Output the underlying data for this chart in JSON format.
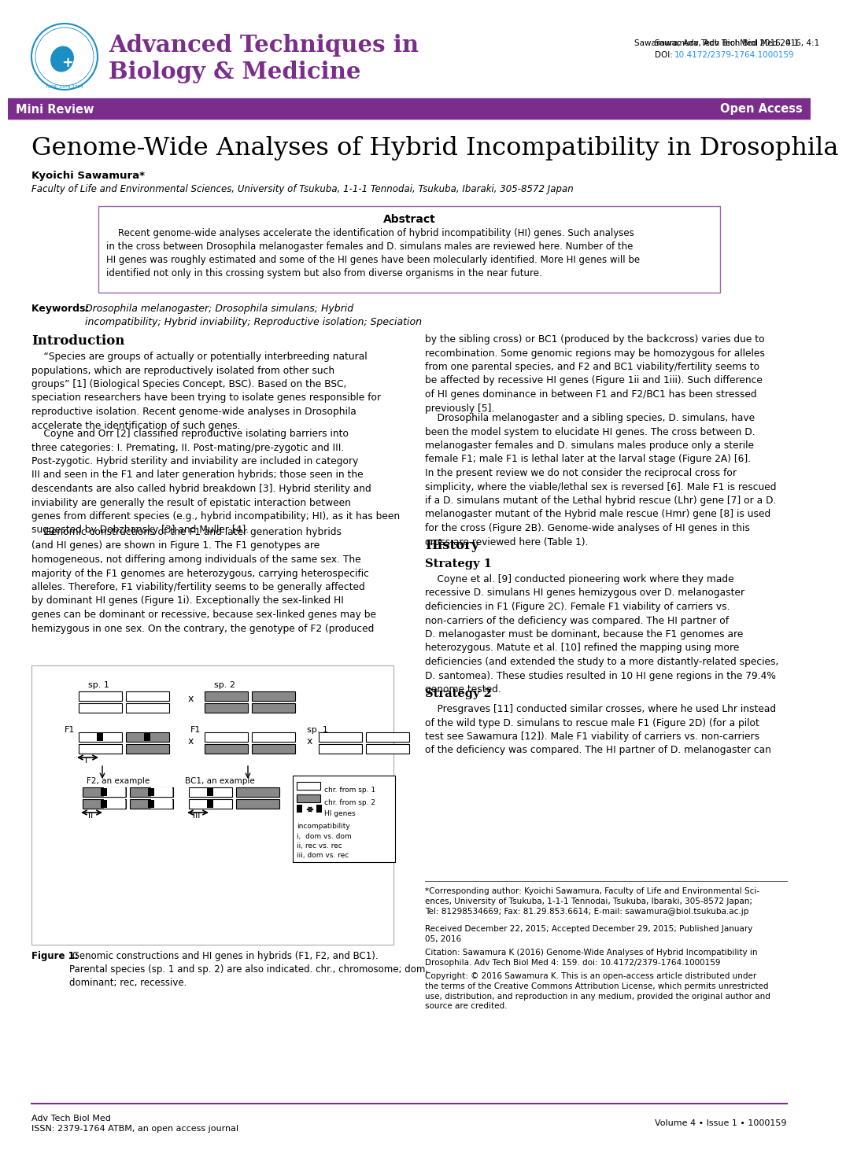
{
  "journal_color": "#7B2D8B",
  "banner_color": "#7B2D8B",
  "doi_color": "#1E90FF",
  "journal_name_line1": "Advanced Techniques in",
  "journal_name_line2": "Biology & Medicine",
  "mini_review_text": "Mini Review",
  "open_access_text": "Open Access",
  "citation_top": "Sawamura, Adv Tech Biol Med 2016, 4:1",
  "doi_text": "DOI: ",
  "doi_link": "10.4172/2379-1764.1000159",
  "article_title": "Genome-Wide Analyses of Hybrid Incompatibility in Drosophila",
  "author": "Kyoichi Sawamura*",
  "affiliation": "Faculty of Life and Environmental Sciences, University of Tsukuba, 1-1-1 Tennodai, Tsukuba, Ibaraki, 305-8572 Japan",
  "abstract_title": "Abstract",
  "abstract_text": "    Recent genome-wide analyses accelerate the identification of hybrid incompatibility (HI) genes. Such analyses\nin the cross between Drosophila melanogaster females and D. simulans males are reviewed here. Number of the\nHI genes was roughly estimated and some of the HI genes have been molecularly identified. More HI genes will be\nidentified not only in this crossing system but also from diverse organisms in the near future.",
  "keywords_label": "Keywords: ",
  "keywords_text": "Drosophila melanogaster; Drosophila simulans; Hybrid\nincompatibility; Hybrid inviability; Reproductive isolation; Speciation",
  "intro_title": "Introduction",
  "left_col_paragraphs": [
    "    “Species are groups of actually or potentially interbreeding natural\npopulations, which are reproductively isolated from other such\ngroups” [1] (Biological Species Concept, BSC). Based on the BSC,\nspeciation researchers have been trying to isolate genes responsible for\nreproductive isolation. Recent genome-wide analyses in Drosophila\naccelerate the identification of such genes.",
    "    Coyne and Orr [2] classified reproductive isolating barriers into\nthree categories: I. Premating, II. Post-mating/pre-zygotic and III.\nPost-zygotic. Hybrid sterility and inviability are included in category\nIII and seen in the F1 and later generation hybrids; those seen in the\ndescendants are also called hybrid breakdown [3]. Hybrid sterility and\ninviability are generally the result of epistatic interaction between\ngenes from different species (e.g., hybrid incompatibility; HI), as it has been\nsuggested by Dobzhansky [3] and Muller [4].",
    "    Genomic constructions of the F1 and later generation hybrids\n(and HI genes) are shown in Figure 1. The F1 genotypes are\nhomogeneous, not differing among individuals of the same sex. The\nmajority of the F1 genomes are heterozygous, carrying heterospecific\nalleles. Therefore, F1 viability/fertility seems to be generally affected\nby dominant HI genes (Figure 1i). Exceptionally the sex-linked HI\ngenes can be dominant or recessive, because sex-linked genes may be\nhemizygous in one sex. On the contrary, the genotype of F2 (produced"
  ],
  "right_col_paragraphs": [
    "by the sibling cross) or BC1 (produced by the backcross) varies due to\nrecombination. Some genomic regions may be homozygous for alleles\nfrom one parental species, and F2 and BC1 viability/fertility seems to\nbe affected by recessive HI genes (Figure 1ii and 1iii). Such difference\nof HI genes dominance in between F1 and F2/BC1 has been stressed\npreviously [5].",
    "    Drosophila melanogaster and a sibling species, D. simulans, have\nbeen the model system to elucidate HI genes. The cross between D.\nmelanogaster females and D. simulans males produce only a sterile\nfemale F1; male F1 is lethal later at the larval stage (Figure 2A) [6].\nIn the present review we do not consider the reciprocal cross for\nsimplicity, where the viable/lethal sex is reversed [6]. Male F1 is rescued\nif a D. simulans mutant of the Lethal hybrid rescue (Lhr) gene [7] or a D.\nmelanogaster mutant of the Hybrid male rescue (Hmr) gene [8] is used\nfor the cross (Figure 2B). Genome-wide analyses of HI genes in this\ncross are reviewed here (Table 1)."
  ],
  "history_title": "History",
  "strategy1_title": "Strategy 1",
  "strategy1_text": "    Coyne et al. [9] conducted pioneering work where they made\nrecessive D. simulans HI genes hemizygous over D. melanogaster\ndeficiencies in F1 (Figure 2C). Female F1 viability of carriers vs.\nnon-carriers of the deficiency was compared. The HI partner of\nD. melanogaster must be dominant, because the F1 genomes are\nheterozygous. Matute et al. [10] refined the mapping using more\ndeficiencies (and extended the study to a more distantly-related species,\nD. santomea). These studies resulted in 10 HI gene regions in the 79.4%\ngenome tested.",
  "strategy2_title": "Strategy 2",
  "strategy2_text": "    Presgraves [11] conducted similar crosses, where he used Lhr instead\nof the wild type D. simulans to rescue male F1 (Figure 2D) (for a pilot\ntest see Sawamura [12]). Male F1 viability of carriers vs. non-carriers\nof the deficiency was compared. The HI partner of D. melanogaster can",
  "fn_sep_text": "*Corresponding author: Kyoichi Sawamura, Faculty of Life and Environmental Sci-\nences, University of Tsukuba, 1-1-1 Tennodai, Tsukuba, Ibaraki, 305-8572 Japan;\nTel: 81298534669; Fax: 81.29.853.6614; E-mail: sawamura@biol.tsukuba.ac.jp",
  "fn_received": "Received December 22, 2015; Accepted December 29, 2015; Published January\n05, 2016",
  "fn_citation": "Citation: Sawamura K (2016) Genome-Wide Analyses of Hybrid Incompatibility in\nDrosophila. Adv Tech Biol Med 4: 159. doi: 10.4172/2379-1764.1000159",
  "fn_copyright": "Copyright: © 2016 Sawamura K. This is an open-access article distributed under\nthe terms of the Creative Commons Attribution License, which permits unrestricted\nuse, distribution, and reproduction in any medium, provided the original author and\nsource are credited.",
  "footer_journal": "Adv Tech Biol Med",
  "footer_issn": "ISSN: 2379-1764 ATBM, an open access journal",
  "footer_volume": "Volume 4 • Issue 1 • 1000159",
  "footer_line_color": "#7B2D8B",
  "figure_caption_bold": "Figure 1:",
  "figure_caption_rest": " Genomic constructions and HI genes in hybrids (F1, F2, and BC1).\nParental species (sp. 1 and sp. 2) are also indicated. chr., chromosome; dom,\ndominant; rec, recessive."
}
